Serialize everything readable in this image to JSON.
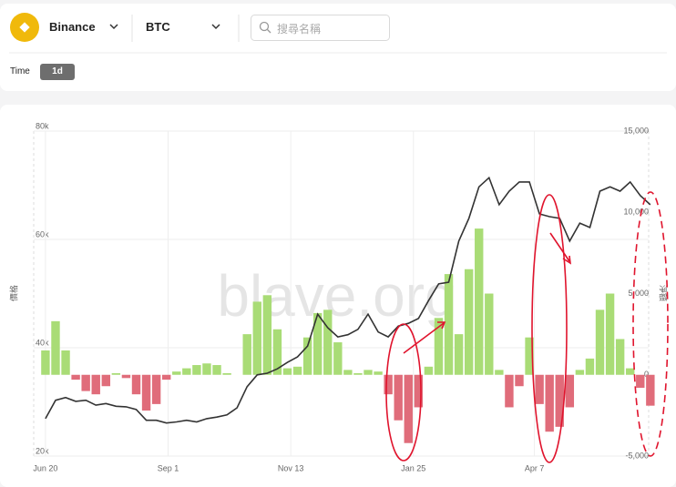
{
  "header": {
    "exchange": "Binance",
    "symbol": "BTC",
    "search_placeholder": "搜尋名稱",
    "time_label": "Time",
    "interval": "1d"
  },
  "chart_data": {
    "type": "bar-line",
    "watermark": "blave.org",
    "ylabel": "價格",
    "y2label": "淨額",
    "x": [
      0,
      6,
      12,
      18,
      24,
      30,
      36,
      42,
      48,
      54,
      60,
      66,
      72,
      78,
      84,
      90,
      96,
      102,
      108,
      114,
      120,
      126,
      132,
      138,
      144,
      150,
      156,
      162,
      168,
      174,
      180,
      186,
      192,
      198,
      204,
      210,
      216,
      222,
      228,
      234,
      240,
      246,
      252,
      258,
      264,
      270,
      276,
      282,
      288,
      294,
      300,
      306,
      312,
      318,
      324,
      330,
      336,
      342,
      348,
      354,
      360
    ],
    "xlim": [
      -7,
      359
    ],
    "xticks": [
      {
        "value": 0,
        "label": "Jun 20"
      },
      {
        "value": 73,
        "label": "Sep 1"
      },
      {
        "value": 146,
        "label": "Nov 13"
      },
      {
        "value": 219,
        "label": "Jan 25"
      },
      {
        "value": 291,
        "label": "Apr 7"
      }
    ],
    "ylim": [
      20000,
      80000
    ],
    "yticks": [
      {
        "value": 20000,
        "label": "20k"
      },
      {
        "value": 40000,
        "label": "40k"
      },
      {
        "value": 60000,
        "label": "60k"
      },
      {
        "value": 80000,
        "label": "80k"
      }
    ],
    "y2lim": [
      -5000,
      15000
    ],
    "y2ticks": [
      {
        "value": -5000,
        "label": "-5,000"
      },
      0,
      {
        "value": 5000,
        "label": "5,000"
      },
      {
        "value": 10000,
        "label": "10,000"
      },
      {
        "value": 15000,
        "label": "15,000"
      }
    ],
    "grid": true,
    "series": [
      {
        "type": "line",
        "color": "#333333",
        "values": [
          26900,
          30300,
          30800,
          30100,
          30300,
          29400,
          29700,
          29200,
          29100,
          28600,
          26600,
          26600,
          26100,
          26300,
          26600,
          26300,
          26900,
          27200,
          27600,
          28900,
          32800,
          35000,
          35300,
          36100,
          37300,
          38300,
          40300,
          46200,
          43700,
          42000,
          42400,
          43400,
          46200,
          42900,
          42000,
          44000,
          44500,
          45400,
          48700,
          51800,
          52100,
          59700,
          63900,
          69700,
          71400,
          66400,
          68900,
          70600,
          70600,
          64700,
          64200,
          63900,
          59700,
          63000,
          62200,
          68900,
          69700,
          68900,
          70600,
          68100,
          66400
        ]
      },
      {
        "type": "bar",
        "axis": "y2",
        "positive_color": "#a9dc76",
        "negative_color": "#e06c7a",
        "values": [
          1500,
          3300,
          1500,
          -300,
          -1000,
          -1200,
          -700,
          100,
          -200,
          -1200,
          -2200,
          -1800,
          -300,
          200,
          400,
          600,
          700,
          600,
          100,
          0,
          2500,
          4500,
          4900,
          2800,
          400,
          500,
          2300,
          3800,
          4000,
          2000,
          300,
          100,
          300,
          200,
          -1200,
          -2800,
          -4200,
          -2000,
          500,
          3500,
          6200,
          2500,
          6500,
          9000,
          5000,
          300,
          -2000,
          -700,
          2300,
          -1800,
          -3500,
          -3200,
          -2000,
          300,
          1000,
          4000,
          5000,
          2200,
          400,
          -800,
          -1900
        ]
      }
    ]
  }
}
